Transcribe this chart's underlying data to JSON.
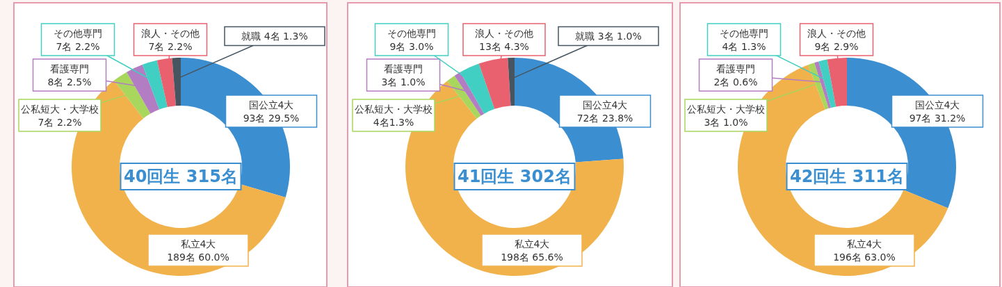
{
  "chart_data": [
    {
      "type": "donut",
      "categories": [
        "国公立4大",
        "私立4大",
        "公私短大・大学校",
        "看護専門",
        "その他専門",
        "浪人・その他",
        "就職"
      ],
      "values": [
        93,
        189,
        7,
        8,
        7,
        7,
        4
      ],
      "colors": [
        "#3b8fd0",
        "#f1b24c",
        "#a9d65c",
        "#b27dc2",
        "#40cfc2",
        "#e9606f",
        "#465560"
      ],
      "value_labels": [
        "93名 29.5%",
        "189名 60.0%",
        "7名 2.2%",
        "8名 2.5%",
        "7名 2.2%",
        "7名 2.2%",
        "4名 1.3%"
      ],
      "annotations": [
        "40回生 315名"
      ]
    },
    {
      "type": "donut",
      "categories": [
        "国公立4大",
        "私立4大",
        "公私短大・大学校",
        "看護専門",
        "その他専門",
        "浪人・その他",
        "就職"
      ],
      "values": [
        72,
        198,
        4,
        3,
        9,
        13,
        3
      ],
      "colors": [
        "#3b8fd0",
        "#f1b24c",
        "#a9d65c",
        "#b27dc2",
        "#40cfc2",
        "#e9606f",
        "#465560"
      ],
      "value_labels": [
        "72名 23.8%",
        "198名 65.6%",
        "4名1.3%",
        "3名 1.0%",
        "9名 3.0%",
        "13名 4.3%",
        "3名 1.0%"
      ],
      "annotations": [
        "41回生 302名"
      ]
    },
    {
      "type": "donut",
      "categories": [
        "国公立4大",
        "私立4大",
        "公私短大・大学校",
        "看護専門",
        "その他専門",
        "浪人・その他"
      ],
      "values": [
        97,
        196,
        3,
        2,
        4,
        9
      ],
      "colors": [
        "#3b8fd0",
        "#f1b24c",
        "#a9d65c",
        "#b27dc2",
        "#40cfc2",
        "#e9606f"
      ],
      "value_labels": [
        "97名 31.2%",
        "196名 63.0%",
        "3名 1.0%",
        "2名 0.6%",
        "4名 1.3%",
        "9名 2.9%"
      ],
      "annotations": [
        "42回生 311名"
      ]
    }
  ]
}
